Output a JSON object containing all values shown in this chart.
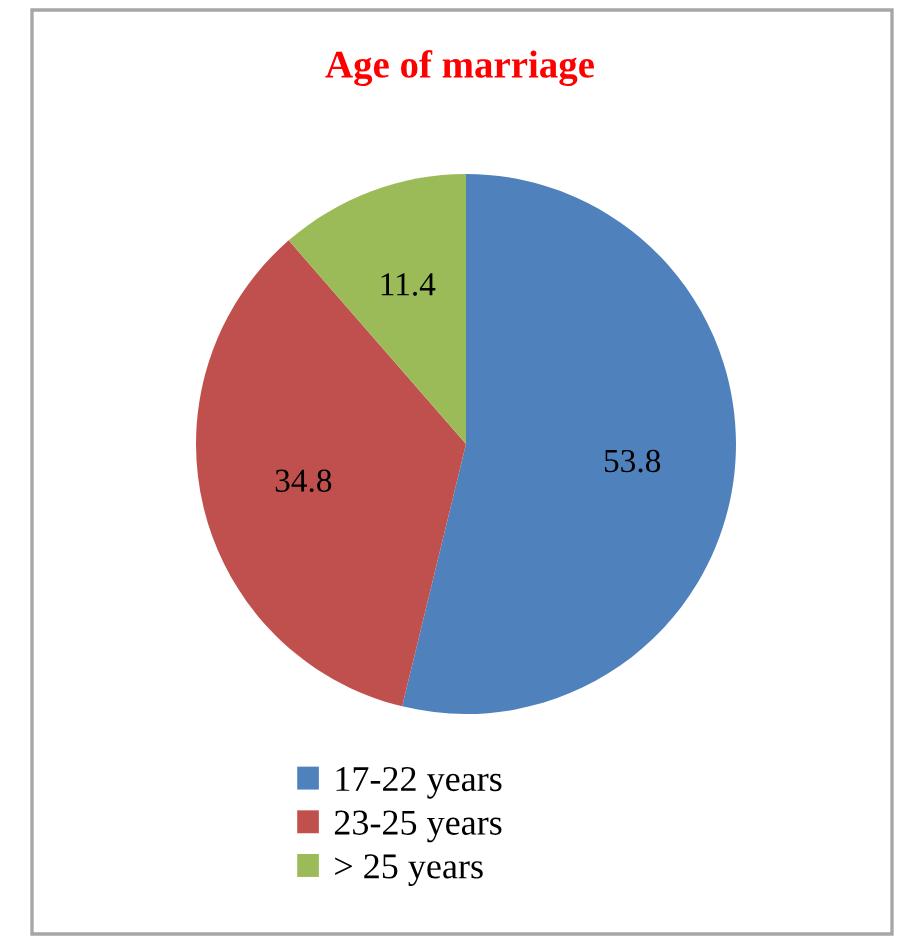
{
  "chart_data": {
    "type": "pie",
    "title": "Age of marriage",
    "categories": [
      "17-22 years",
      "23-25 years",
      "> 25 years"
    ],
    "values": [
      53.8,
      34.8,
      11.4
    ],
    "colors": [
      "#4f81bd",
      "#c0504d",
      "#9bbb59"
    ],
    "data_labels": true,
    "legend": "bottom"
  }
}
